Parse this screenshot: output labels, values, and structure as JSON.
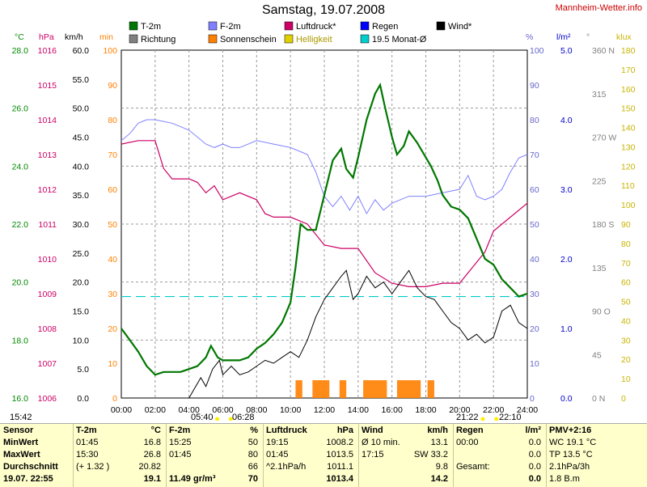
{
  "page": {
    "title": "Samstag, 19.07.2008",
    "site": "Mannheim-Wetter.info"
  },
  "legend": [
    {
      "label": "T-2m",
      "color": "#007700"
    },
    {
      "label": "Richtung",
      "color": "#808080"
    },
    {
      "label": "F-2m",
      "color": "#8080ff"
    },
    {
      "label": "Sonnenschein",
      "color": "#ff8000"
    },
    {
      "label": "Luftdruck*",
      "color": "#cc0066"
    },
    {
      "label": "Helligkeit",
      "color": "#e0d000"
    },
    {
      "label": "Regen",
      "color": "#0000ff"
    },
    {
      "label": "19.5 Monat-Ø",
      "color": "#00cccc"
    },
    {
      "label": "Wind*",
      "color": "#000000"
    }
  ],
  "axes": {
    "temp": {
      "unit": "°C",
      "ticks": [
        "28.0",
        "26.0",
        "24.0",
        "22.0",
        "20.0",
        "18.0",
        "16.0"
      ],
      "color": "#008800"
    },
    "press": {
      "unit": "hPa",
      "ticks": [
        "1016",
        "1015",
        "1014",
        "1013",
        "1012",
        "1011",
        "1010",
        "1009",
        "1008",
        "1007",
        "1006"
      ],
      "color": "#cc0066"
    },
    "wind": {
      "unit": "km/h",
      "ticks": [
        "60.0",
        "55.0",
        "50.0",
        "45.0",
        "40.0",
        "35.0",
        "30.0",
        "25.0",
        "20.0",
        "15.0",
        "10.0",
        "5.0",
        "0.0"
      ],
      "color": "#000000"
    },
    "sun": {
      "unit": "min",
      "ticks": [
        "100",
        "90",
        "80",
        "70",
        "60",
        "50",
        "40",
        "30",
        "20",
        "10",
        "0"
      ],
      "color": "#ff8000"
    },
    "hum": {
      "unit": "%",
      "ticks": [
        "100",
        "90",
        "80",
        "70",
        "60",
        "50",
        "40",
        "30",
        "20",
        "10",
        "0"
      ],
      "color": "#6666cc"
    },
    "rain": {
      "unit": "l/m²",
      "ticks": [
        "5.0",
        "4.0",
        "3.0",
        "2.0",
        "1.0",
        "0.0"
      ],
      "color": "#0000cc"
    },
    "dir": {
      "unit": "°",
      "ticks": [
        "360 N",
        "315",
        "270 W",
        "225",
        "180 S",
        "135",
        "90 O",
        "45",
        "0 N"
      ],
      "color": "#808080"
    },
    "lux": {
      "unit": "klux",
      "ticks": [
        "180",
        "170",
        "160",
        "150",
        "140",
        "130",
        "120",
        "110",
        "100",
        "90",
        "80",
        "70",
        "60",
        "50",
        "40",
        "30",
        "20",
        "10",
        "0"
      ],
      "color": "#c8b400"
    },
    "x": [
      "00:00",
      "02:00",
      "04:00",
      "06:00",
      "08:00",
      "10:00",
      "12:00",
      "14:00",
      "16:00",
      "18:00",
      "20:00",
      "22:00",
      "24:00"
    ]
  },
  "sun_events": {
    "rise_label": "05:40",
    "rise_label2": "06:28",
    "set_label": "21:22",
    "set_label2": "22:10",
    "left_label": "15:42"
  },
  "chart_data": {
    "type": "line",
    "x_label_unit": "hour",
    "series": [
      {
        "name": "T-2m",
        "unit": "°C",
        "points": [
          [
            0,
            18.4
          ],
          [
            0.5,
            18.0
          ],
          [
            1,
            17.6
          ],
          [
            1.5,
            17.1
          ],
          [
            2,
            16.8
          ],
          [
            2.5,
            16.9
          ],
          [
            3,
            16.9
          ],
          [
            3.5,
            16.9
          ],
          [
            4,
            17.0
          ],
          [
            4.5,
            17.1
          ],
          [
            5,
            17.4
          ],
          [
            5.3,
            17.8
          ],
          [
            5.7,
            17.4
          ],
          [
            6,
            17.3
          ],
          [
            7,
            17.3
          ],
          [
            7.5,
            17.4
          ],
          [
            8,
            17.7
          ],
          [
            8.5,
            17.9
          ],
          [
            9,
            18.2
          ],
          [
            9.5,
            18.6
          ],
          [
            10,
            19.3
          ],
          [
            10.3,
            20.5
          ],
          [
            10.6,
            22.0
          ],
          [
            11,
            21.8
          ],
          [
            11.5,
            21.8
          ],
          [
            12,
            23.0
          ],
          [
            12.5,
            24.2
          ],
          [
            13,
            24.6
          ],
          [
            13.3,
            23.9
          ],
          [
            13.7,
            23.6
          ],
          [
            14,
            24.3
          ],
          [
            14.5,
            25.6
          ],
          [
            15,
            26.5
          ],
          [
            15.3,
            26.8
          ],
          [
            15.6,
            26.0
          ],
          [
            16,
            25.0
          ],
          [
            16.3,
            24.4
          ],
          [
            16.7,
            24.7
          ],
          [
            17,
            25.2
          ],
          [
            17.5,
            24.8
          ],
          [
            18,
            24.3
          ],
          [
            18.3,
            24.0
          ],
          [
            18.7,
            23.5
          ],
          [
            19,
            23.0
          ],
          [
            19.5,
            22.6
          ],
          [
            20,
            22.5
          ],
          [
            20.5,
            22.2
          ],
          [
            21,
            21.5
          ],
          [
            21.5,
            20.8
          ],
          [
            22,
            20.6
          ],
          [
            22.5,
            20.1
          ],
          [
            23,
            19.8
          ],
          [
            23.5,
            19.5
          ],
          [
            24,
            19.6
          ]
        ]
      },
      {
        "name": "Wind*",
        "unit": "km/h",
        "points": [
          [
            4,
            0
          ],
          [
            4.3,
            1.5
          ],
          [
            4.7,
            3.5
          ],
          [
            5,
            2.0
          ],
          [
            5.4,
            5.0
          ],
          [
            5.8,
            6.5
          ],
          [
            6,
            4.0
          ],
          [
            6.5,
            5.5
          ],
          [
            7,
            4.0
          ],
          [
            7.5,
            4.5
          ],
          [
            8,
            5.5
          ],
          [
            8.5,
            6.5
          ],
          [
            9,
            6.0
          ],
          [
            9.5,
            7.0
          ],
          [
            10,
            8.0
          ],
          [
            10.5,
            7.0
          ],
          [
            11,
            10.0
          ],
          [
            11.5,
            14.0
          ],
          [
            12,
            17.0
          ],
          [
            12.5,
            19.0
          ],
          [
            13,
            21.0
          ],
          [
            13.3,
            22.0
          ],
          [
            13.7,
            17.0
          ],
          [
            14,
            18.0
          ],
          [
            14.5,
            21.0
          ],
          [
            15,
            19.0
          ],
          [
            15.5,
            20.0
          ],
          [
            16,
            18.0
          ],
          [
            16.5,
            20.0
          ],
          [
            17,
            22.0
          ],
          [
            17.5,
            19.0
          ],
          [
            18,
            17.5
          ],
          [
            18.5,
            17.0
          ],
          [
            19,
            15.0
          ],
          [
            19.5,
            13.0
          ],
          [
            20,
            12.0
          ],
          [
            20.5,
            10.0
          ],
          [
            21,
            11.0
          ],
          [
            21.5,
            9.5
          ],
          [
            22,
            10.5
          ],
          [
            22.5,
            15.0
          ],
          [
            23,
            16.0
          ],
          [
            23.5,
            13.0
          ],
          [
            24,
            12.0
          ]
        ]
      },
      {
        "name": "F-2m",
        "unit": "%",
        "points": [
          [
            0,
            74
          ],
          [
            0.5,
            76
          ],
          [
            1,
            79
          ],
          [
            1.5,
            80
          ],
          [
            2,
            80
          ],
          [
            3,
            79
          ],
          [
            3.5,
            78
          ],
          [
            4,
            77
          ],
          [
            5,
            73
          ],
          [
            5.5,
            72
          ],
          [
            6,
            73
          ],
          [
            6.5,
            72
          ],
          [
            7,
            72
          ],
          [
            8,
            74
          ],
          [
            9,
            73
          ],
          [
            10,
            72
          ],
          [
            11,
            70
          ],
          [
            11.5,
            65
          ],
          [
            12,
            58
          ],
          [
            12.5,
            55
          ],
          [
            13,
            58
          ],
          [
            13.5,
            54
          ],
          [
            14,
            58
          ],
          [
            14.5,
            53
          ],
          [
            15,
            57
          ],
          [
            15.5,
            54
          ],
          [
            16,
            56
          ],
          [
            17,
            58
          ],
          [
            17.5,
            58
          ],
          [
            18,
            58
          ],
          [
            19,
            59
          ],
          [
            20,
            60
          ],
          [
            20.5,
            64
          ],
          [
            21,
            58
          ],
          [
            21.5,
            57
          ],
          [
            22,
            58
          ],
          [
            22.5,
            60
          ],
          [
            23,
            65
          ],
          [
            23.5,
            69
          ],
          [
            24,
            70
          ]
        ]
      },
      {
        "name": "Luftdruck*",
        "unit": "hPa",
        "points": [
          [
            0,
            1013.3
          ],
          [
            1,
            1013.4
          ],
          [
            2,
            1013.4
          ],
          [
            2.5,
            1012.6
          ],
          [
            3,
            1012.3
          ],
          [
            4,
            1012.3
          ],
          [
            4.5,
            1012.2
          ],
          [
            5,
            1011.9
          ],
          [
            5.5,
            1012.1
          ],
          [
            6,
            1011.7
          ],
          [
            7,
            1011.9
          ],
          [
            8,
            1011.7
          ],
          [
            8.5,
            1011.3
          ],
          [
            9,
            1011.2
          ],
          [
            10,
            1011.2
          ],
          [
            11,
            1011.0
          ],
          [
            11.5,
            1010.7
          ],
          [
            12,
            1010.4
          ],
          [
            13,
            1010.3
          ],
          [
            14,
            1010.3
          ],
          [
            15,
            1009.6
          ],
          [
            16,
            1009.3
          ],
          [
            17,
            1009.2
          ],
          [
            18,
            1009.2
          ],
          [
            19,
            1009.3
          ],
          [
            20,
            1009.3
          ],
          [
            21,
            1009.9
          ],
          [
            21.5,
            1010.2
          ],
          [
            22,
            1010.8
          ],
          [
            23,
            1011.2
          ],
          [
            24,
            1011.6
          ]
        ]
      },
      {
        "name": "19.5 Monat-Ø",
        "unit": "°C",
        "points": [
          [
            0,
            19.5
          ],
          [
            24,
            19.5
          ]
        ]
      }
    ],
    "sunshine_segments": [
      [
        10.3,
        10.7
      ],
      [
        11.3,
        12.3
      ],
      [
        12.9,
        13.3
      ],
      [
        14.3,
        15.7
      ],
      [
        16.3,
        17.7
      ],
      [
        18.1,
        18.5
      ]
    ]
  },
  "table": {
    "sensor": {
      "hdr": "Sensor",
      "rows": [
        "MinWert",
        "MaxWert",
        "Durchschnitt",
        "19.07. 22:55"
      ]
    },
    "t2m": {
      "hdr": "T-2m",
      "unit": "°C",
      "rows": [
        [
          "01:45",
          "16.8"
        ],
        [
          "15:30",
          "26.8"
        ],
        [
          "(+ 1.32 )",
          "20.82"
        ],
        [
          "",
          "19.1"
        ]
      ]
    },
    "f2m": {
      "hdr": "F-2m",
      "unit": "%",
      "rows": [
        [
          "15:25",
          "50"
        ],
        [
          "01:45",
          "80"
        ],
        [
          "",
          "66"
        ],
        [
          "11.49 gr/m³",
          "70"
        ]
      ]
    },
    "press": {
      "hdr": "Luftdruck",
      "unit": "hPa",
      "rows": [
        [
          "19:15",
          "1008.2"
        ],
        [
          "01:45",
          "1013.5"
        ],
        [
          "^2.1hPa/h",
          "1011.1"
        ],
        [
          "",
          "1013.4"
        ]
      ]
    },
    "wind": {
      "hdr": "Wind",
      "unit": "km/h",
      "rows": [
        [
          "Ø 10 min.",
          "13.1"
        ],
        [
          "17:15",
          "SW 33.2"
        ],
        [
          "",
          "9.8"
        ],
        [
          "",
          "14.2"
        ]
      ]
    },
    "rain": {
      "hdr": "Regen",
      "unit": "l/m²",
      "rows": [
        [
          "00:00",
          "0.0"
        ],
        [
          "",
          "0.0"
        ],
        [
          "Gesamt:",
          "0.0"
        ],
        [
          "",
          "0.0"
        ]
      ]
    },
    "pmv": {
      "hdr": "PMV+2:16",
      "rows": [
        "WC 19.1 °C",
        "TP 13.5 °C",
        "2.1hPa/3h",
        "1.8 B.m"
      ]
    }
  }
}
